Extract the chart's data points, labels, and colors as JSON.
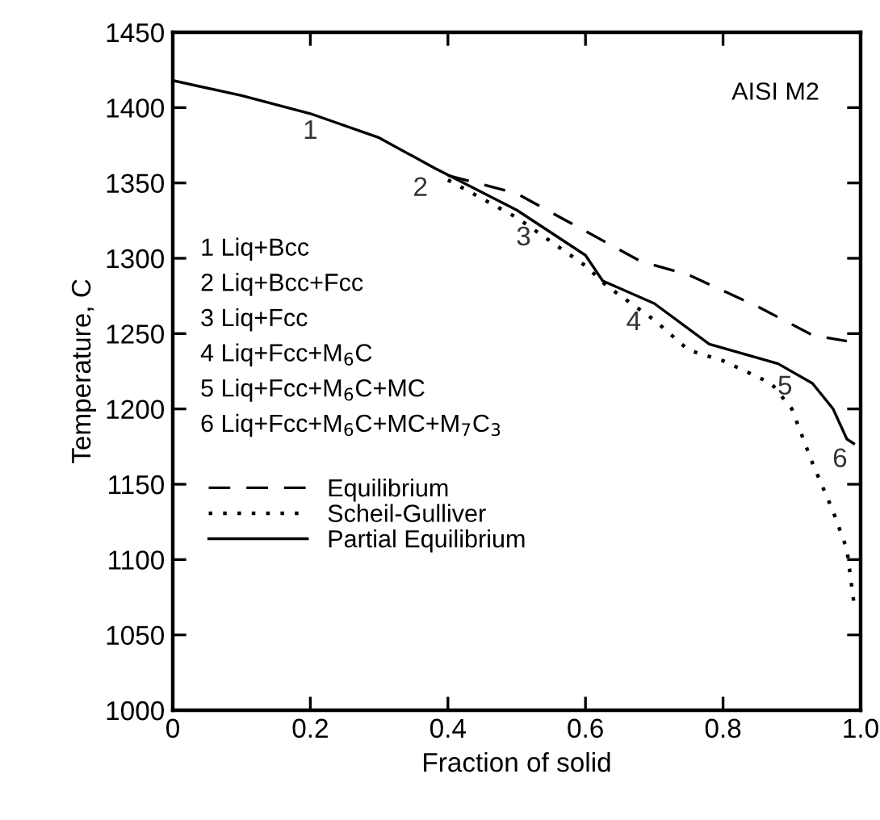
{
  "chart_data": {
    "type": "line",
    "xlabel": "Fraction of solid",
    "ylabel": "Temperature, C",
    "xlim": [
      0,
      1.0
    ],
    "xticks": [
      0,
      0.2,
      0.4,
      0.6,
      0.8,
      {
        "value": 1,
        "label": "1.0"
      }
    ],
    "ylim": [
      1000,
      1450
    ],
    "yticks": [
      1000,
      1050,
      1100,
      1150,
      1200,
      1250,
      1300,
      1350,
      1400,
      1450
    ],
    "grid": false,
    "legend": "bottom left",
    "series": [
      {
        "name": "Equilibrium",
        "color": "#000000",
        "line_style": "dashed",
        "x": [
          0.4,
          0.5,
          0.6,
          0.68,
          0.75,
          0.85,
          0.93,
          0.98
        ],
        "values": [
          1355,
          1343,
          1318,
          1298,
          1289,
          1268,
          1249,
          1245
        ]
      },
      {
        "name": "Scheil-Gulliver",
        "color": "#000000",
        "line_style": "dotted",
        "x": [
          0.4,
          0.5,
          0.6,
          0.63,
          0.7,
          0.75,
          0.8,
          0.87,
          0.9,
          0.93,
          0.96,
          0.98,
          0.99
        ],
        "values": [
          1352,
          1327,
          1295,
          1282,
          1259,
          1239,
          1232,
          1217,
          1200,
          1164,
          1132,
          1107,
          1072
        ]
      },
      {
        "name": "Partial Equilibrium",
        "color": "#000000",
        "line_style": "solid",
        "x": [
          0,
          0.1,
          0.2,
          0.3,
          0.38,
          0.5,
          0.6,
          0.625,
          0.7,
          0.78,
          0.88,
          0.93,
          0.96,
          0.98,
          0.99
        ],
        "values": [
          1418,
          1408,
          1396,
          1380,
          1360,
          1332,
          1302,
          1285,
          1270,
          1243,
          1230,
          1217,
          1200,
          1180,
          1177
        ]
      }
    ],
    "annotations": [
      "1",
      "2",
      "3",
      "4",
      "5",
      "6",
      "AISI M2",
      "1 Liq+Bcc",
      "2 Liq+Bcc+Fcc",
      "3 Liq+Fcc",
      "4 Liq+Fcc+M$_{6}$C",
      "5 Liq+Fcc+M$_{6}$C+MC",
      "6 Liq+Fcc+M$_{6}$C+MC+M$_{7}$C$_{3}$"
    ]
  }
}
